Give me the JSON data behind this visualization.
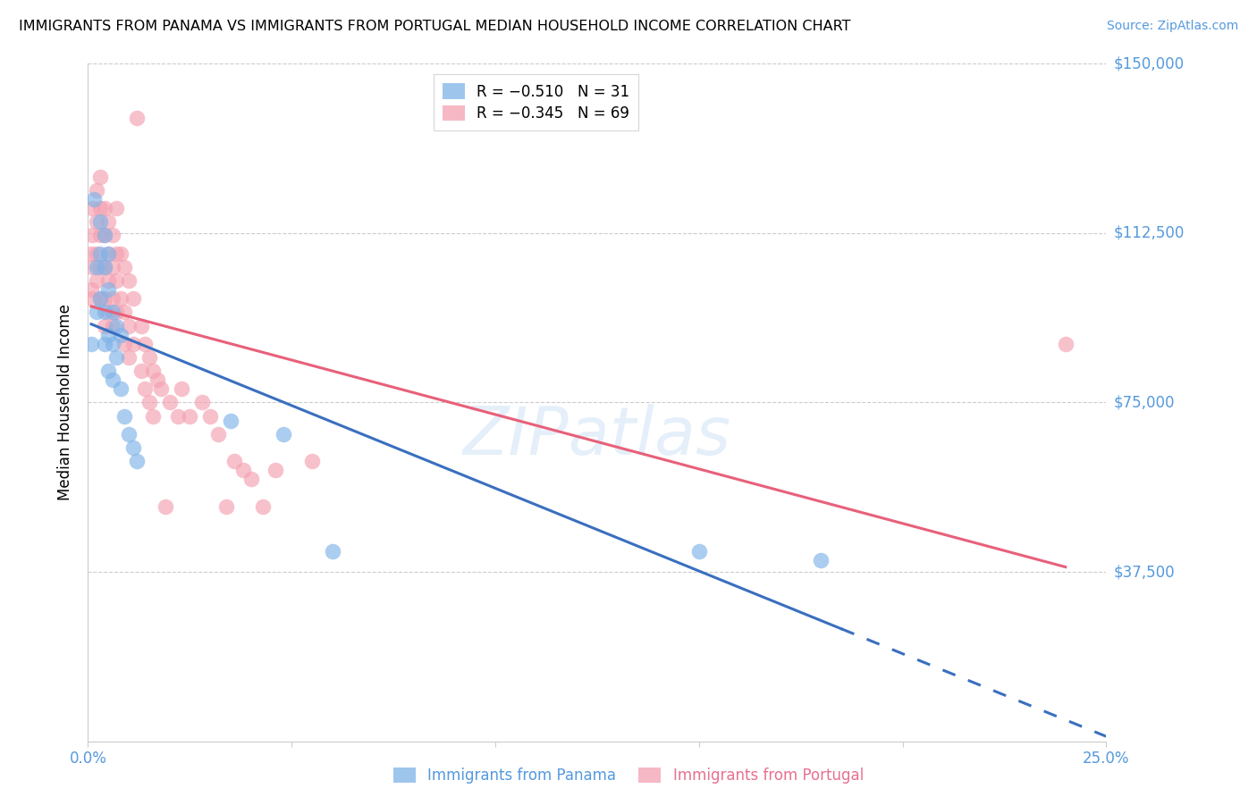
{
  "title": "IMMIGRANTS FROM PANAMA VS IMMIGRANTS FROM PORTUGAL MEDIAN HOUSEHOLD INCOME CORRELATION CHART",
  "source": "Source: ZipAtlas.com",
  "ylabel": "Median Household Income",
  "yticks": [
    0,
    37500,
    75000,
    112500,
    150000
  ],
  "ytick_labels": [
    "",
    "$37,500",
    "$75,000",
    "$112,500",
    "$150,000"
  ],
  "xlim": [
    0.0,
    0.25
  ],
  "ylim": [
    0,
    150000
  ],
  "panama_color": "#7EB3E8",
  "portugal_color": "#F4A0B0",
  "trendline_panama_color": "#3A6FBF",
  "trendline_portugal_color": "#E8607A",
  "watermark": "ZIPatlas",
  "legend_text1": "R = −0.510   N = 31",
  "legend_text2": "R = −0.345   N = 69",
  "bottom_label1": "Immigrants from Panama",
  "bottom_label2": "Immigrants from Portugal",
  "panama_scatter": [
    [
      0.0008,
      88000
    ],
    [
      0.0015,
      120000
    ],
    [
      0.002,
      105000
    ],
    [
      0.002,
      95000
    ],
    [
      0.003,
      115000
    ],
    [
      0.003,
      108000
    ],
    [
      0.003,
      98000
    ],
    [
      0.004,
      112000
    ],
    [
      0.004,
      105000
    ],
    [
      0.004,
      95000
    ],
    [
      0.004,
      88000
    ],
    [
      0.005,
      108000
    ],
    [
      0.005,
      100000
    ],
    [
      0.005,
      90000
    ],
    [
      0.005,
      82000
    ],
    [
      0.006,
      95000
    ],
    [
      0.006,
      88000
    ],
    [
      0.006,
      80000
    ],
    [
      0.007,
      92000
    ],
    [
      0.007,
      85000
    ],
    [
      0.008,
      90000
    ],
    [
      0.008,
      78000
    ],
    [
      0.009,
      72000
    ],
    [
      0.01,
      68000
    ],
    [
      0.011,
      65000
    ],
    [
      0.012,
      62000
    ],
    [
      0.035,
      71000
    ],
    [
      0.048,
      68000
    ],
    [
      0.06,
      42000
    ],
    [
      0.15,
      42000
    ],
    [
      0.18,
      40000
    ]
  ],
  "portugal_scatter": [
    [
      0.0008,
      108000
    ],
    [
      0.0008,
      100000
    ],
    [
      0.001,
      118000
    ],
    [
      0.001,
      112000
    ],
    [
      0.001,
      105000
    ],
    [
      0.001,
      98000
    ],
    [
      0.002,
      122000
    ],
    [
      0.002,
      115000
    ],
    [
      0.002,
      108000
    ],
    [
      0.002,
      102000
    ],
    [
      0.003,
      125000
    ],
    [
      0.003,
      118000
    ],
    [
      0.003,
      112000
    ],
    [
      0.003,
      105000
    ],
    [
      0.003,
      98000
    ],
    [
      0.004,
      118000
    ],
    [
      0.004,
      112000
    ],
    [
      0.004,
      105000
    ],
    [
      0.004,
      98000
    ],
    [
      0.004,
      92000
    ],
    [
      0.005,
      115000
    ],
    [
      0.005,
      108000
    ],
    [
      0.005,
      102000
    ],
    [
      0.005,
      95000
    ],
    [
      0.006,
      112000
    ],
    [
      0.006,
      105000
    ],
    [
      0.006,
      98000
    ],
    [
      0.006,
      92000
    ],
    [
      0.007,
      118000
    ],
    [
      0.007,
      108000
    ],
    [
      0.007,
      102000
    ],
    [
      0.007,
      95000
    ],
    [
      0.008,
      108000
    ],
    [
      0.008,
      98000
    ],
    [
      0.009,
      105000
    ],
    [
      0.009,
      95000
    ],
    [
      0.009,
      88000
    ],
    [
      0.01,
      102000
    ],
    [
      0.01,
      92000
    ],
    [
      0.01,
      85000
    ],
    [
      0.011,
      98000
    ],
    [
      0.011,
      88000
    ],
    [
      0.012,
      138000
    ],
    [
      0.013,
      92000
    ],
    [
      0.013,
      82000
    ],
    [
      0.014,
      88000
    ],
    [
      0.014,
      78000
    ],
    [
      0.015,
      85000
    ],
    [
      0.015,
      75000
    ],
    [
      0.016,
      82000
    ],
    [
      0.016,
      72000
    ],
    [
      0.017,
      80000
    ],
    [
      0.018,
      78000
    ],
    [
      0.019,
      52000
    ],
    [
      0.02,
      75000
    ],
    [
      0.022,
      72000
    ],
    [
      0.023,
      78000
    ],
    [
      0.025,
      72000
    ],
    [
      0.028,
      75000
    ],
    [
      0.03,
      72000
    ],
    [
      0.032,
      68000
    ],
    [
      0.034,
      52000
    ],
    [
      0.036,
      62000
    ],
    [
      0.038,
      60000
    ],
    [
      0.04,
      58000
    ],
    [
      0.043,
      52000
    ],
    [
      0.046,
      60000
    ],
    [
      0.055,
      62000
    ],
    [
      0.24,
      88000
    ]
  ]
}
